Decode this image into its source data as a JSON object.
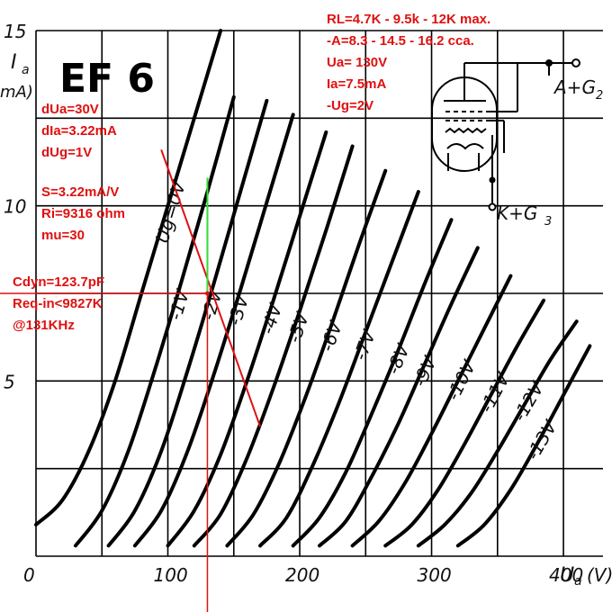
{
  "chart_data": {
    "type": "line",
    "title": "EF 6",
    "xlabel": "U",
    "xlabel_sub": "a",
    "xunit": "(V)",
    "ylabel": "I",
    "ylabel_sub": "a",
    "yunit": "mA)",
    "xlim": [
      0,
      430
    ],
    "ylim": [
      0,
      15
    ],
    "grid": true,
    "x_ticks": [
      0,
      100,
      200,
      300,
      400
    ],
    "y_ticks": [
      5,
      10,
      15
    ],
    "series": [
      {
        "name": "Ug=0V",
        "x": [
          0,
          20,
          40,
          60,
          80,
          100,
          120,
          140
        ],
        "y": [
          0.9,
          1.6,
          3.0,
          5.0,
          7.5,
          10.0,
          12.5,
          15.0
        ]
      },
      {
        "name": "-1V",
        "x": [
          30,
          50,
          70,
          90,
          110,
          130,
          150
        ],
        "y": [
          0.3,
          1.3,
          3.0,
          5.3,
          7.8,
          10.4,
          13.1
        ]
      },
      {
        "name": "-2V",
        "x": [
          55,
          75,
          95,
          115,
          135,
          155,
          175
        ],
        "y": [
          0.3,
          1.3,
          3.0,
          5.3,
          7.8,
          10.4,
          13.0
        ]
      },
      {
        "name": "-3V",
        "x": [
          75,
          95,
          115,
          135,
          155,
          175,
          195
        ],
        "y": [
          0.3,
          1.3,
          3.0,
          5.2,
          7.6,
          10.1,
          12.6
        ]
      },
      {
        "name": "-4V",
        "x": [
          100,
          120,
          140,
          160,
          180,
          200,
          220
        ],
        "y": [
          0.3,
          1.3,
          2.9,
          5.0,
          7.3,
          9.7,
          12.1
        ]
      },
      {
        "name": "-5V",
        "x": [
          120,
          140,
          160,
          180,
          200,
          220,
          240
        ],
        "y": [
          0.3,
          1.2,
          2.8,
          4.8,
          7.0,
          9.3,
          11.7
        ]
      },
      {
        "name": "-6V",
        "x": [
          145,
          165,
          185,
          205,
          225,
          245,
          265
        ],
        "y": [
          0.3,
          1.2,
          2.7,
          4.6,
          6.7,
          8.9,
          11.0
        ]
      },
      {
        "name": "-7V",
        "x": [
          170,
          190,
          210,
          230,
          250,
          270,
          290
        ],
        "y": [
          0.3,
          1.1,
          2.6,
          4.4,
          6.4,
          8.4,
          10.4
        ]
      },
      {
        "name": "-8V",
        "x": [
          195,
          215,
          235,
          255,
          275,
          295,
          315
        ],
        "y": [
          0.3,
          1.1,
          2.4,
          4.1,
          5.9,
          7.8,
          9.6
        ]
      },
      {
        "name": "-9V",
        "x": [
          215,
          235,
          255,
          275,
          295,
          315,
          335
        ],
        "y": [
          0.3,
          1.0,
          2.3,
          3.8,
          5.5,
          7.2,
          8.8
        ]
      },
      {
        "name": "-10V",
        "x": [
          240,
          260,
          280,
          300,
          320,
          340,
          360
        ],
        "y": [
          0.3,
          1.0,
          2.1,
          3.5,
          5.0,
          6.5,
          8.0
        ]
      },
      {
        "name": "-11V",
        "x": [
          265,
          285,
          305,
          325,
          345,
          365,
          385
        ],
        "y": [
          0.3,
          0.9,
          1.9,
          3.2,
          4.6,
          6.0,
          7.3
        ]
      },
      {
        "name": "-12V",
        "x": [
          290,
          310,
          330,
          350,
          370,
          390,
          410
        ],
        "y": [
          0.3,
          0.9,
          1.8,
          3.0,
          4.3,
          5.6,
          6.7
        ]
      },
      {
        "name": "-13V",
        "x": [
          320,
          340,
          360,
          380,
          400,
          420
        ],
        "y": [
          0.3,
          0.9,
          1.9,
          3.2,
          4.6,
          6.0
        ]
      }
    ],
    "load_line": {
      "x": [
        95,
        170
      ],
      "y": [
        11.6,
        3.7
      ],
      "color": "#e01010"
    },
    "operating_point": {
      "x": 130,
      "y": 7.5
    },
    "delta_segment": {
      "x": 130,
      "y": [
        7.5,
        10.8
      ],
      "color": "#33dd33"
    },
    "markers": {
      "vertical_x": 130,
      "horizontal_y": 7.5,
      "color": "#e01010"
    }
  },
  "annotations": {
    "top_lines": [
      "RL=4.7K - 9.5k - 12K max.",
      "-A=8.3 - 14.5 - 16.2 cca.",
      "Ua= 130V",
      "Ia=7.5mA",
      "-Ug=2V"
    ],
    "delta_lines": [
      "dUa=30V",
      "dIa=3.22mA",
      "dUg=1V"
    ],
    "params_lines": [
      "S=3.22mA/V",
      "Ri=9316 ohm",
      "mu=30"
    ],
    "cap_lines": [
      "Cdyn=123.7pF",
      "Req-in<9827K",
      "@131KHz"
    ]
  },
  "schematic": {
    "label_anode": "A+G",
    "label_anode_sub": "2",
    "label_cathode": "K+G",
    "label_cathode_sub": "3"
  },
  "colors": {
    "annotation": "#e01010",
    "green_segment": "#33dd33",
    "ink": "#000000"
  }
}
